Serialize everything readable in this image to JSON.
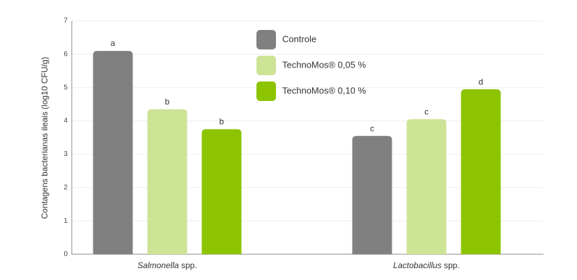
{
  "chart_data": {
    "type": "bar",
    "y_label": "Contagens bacterianas ileais (log10 CFU/g)",
    "categories": [
      "Salmonella spp.",
      "Lactobacillus spp."
    ],
    "series": [
      {
        "name": "Controle",
        "color": "#808080",
        "values": [
          6.1,
          3.55
        ],
        "letters": [
          "a",
          "c"
        ]
      },
      {
        "name": "TechnoMos® 0,05 %",
        "color": "#cde396",
        "values": [
          4.35,
          4.05
        ],
        "letters": [
          "b",
          "c"
        ]
      },
      {
        "name": "TechnoMos® 0,10 %",
        "color": "#8cc400",
        "values": [
          3.75,
          4.95
        ],
        "letters": [
          "b",
          "d"
        ]
      }
    ],
    "ylim": [
      0,
      7
    ],
    "yticks": [
      0,
      1,
      2,
      3,
      4,
      5,
      6,
      7
    ],
    "grid": true
  }
}
